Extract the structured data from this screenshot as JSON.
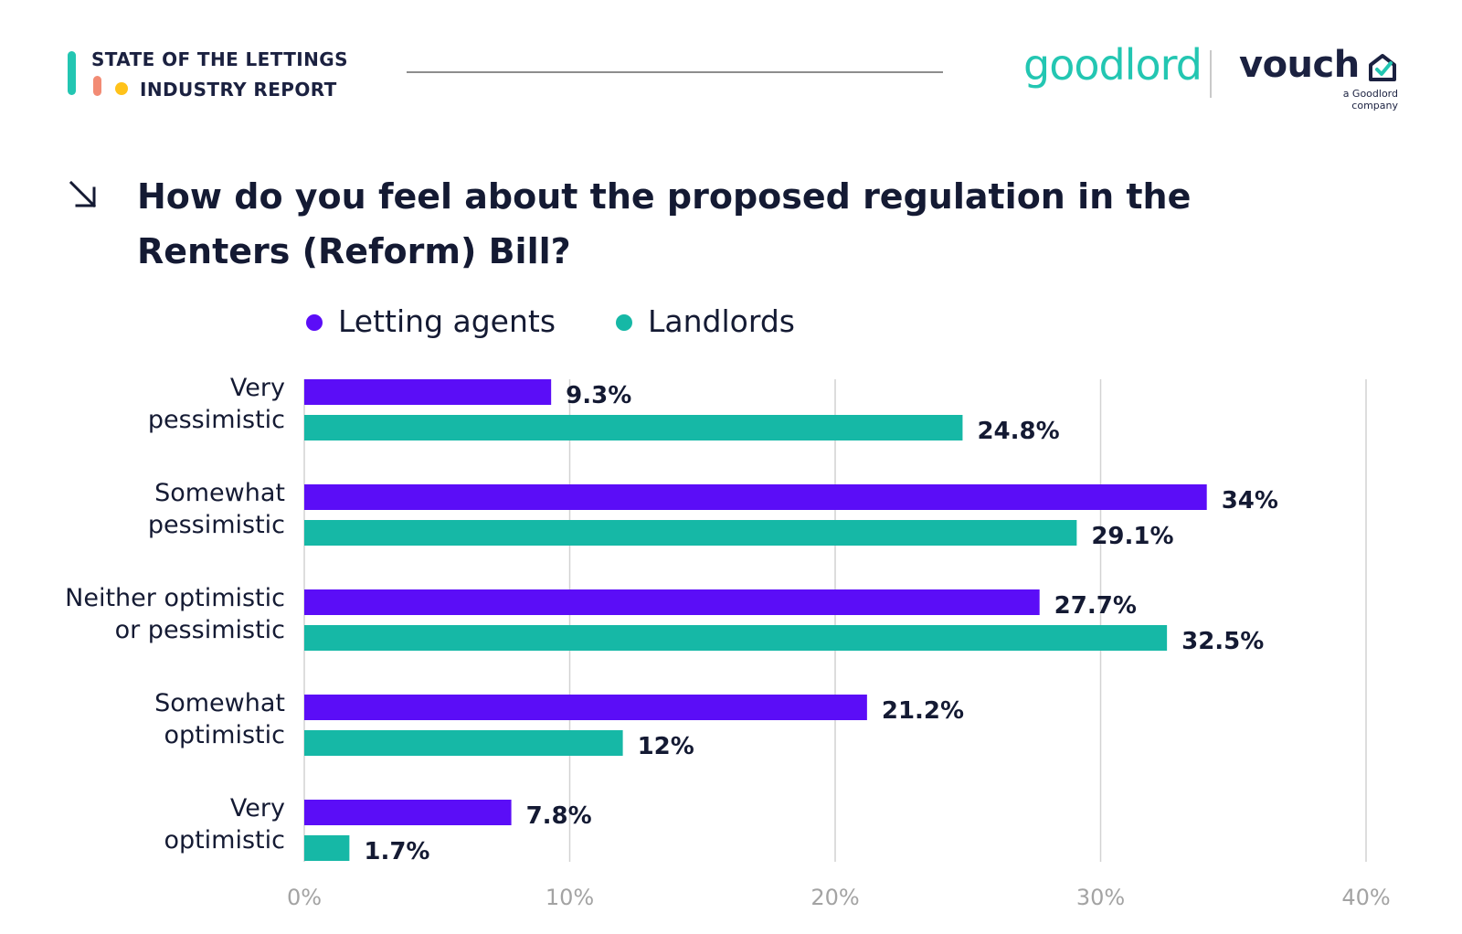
{
  "header": {
    "report_line1": "STATE OF THE LETTINGS",
    "report_line2": "INDUSTRY REPORT",
    "logo_goodlord": "goodlord",
    "logo_vouch": "vouch",
    "vouch_tagline_line1": "a Goodlord",
    "vouch_tagline_line2": "company",
    "brand_colors": {
      "teal": "#23c6b2",
      "coral": "#f28b74",
      "yellow": "#ffc21a",
      "navy": "#1b2140"
    }
  },
  "title_icon": "arrow-down-right-icon",
  "title_line1": "How do you feel about the proposed regulation in the",
  "title_line2": "Renters (Reform) Bill?",
  "chart_data": {
    "type": "bar",
    "orientation": "horizontal",
    "categories": [
      [
        "Very",
        "pessimistic"
      ],
      [
        "Somewhat",
        "pessimistic"
      ],
      [
        "Neither optimistic",
        "or pessimistic"
      ],
      [
        "Somewhat",
        "optimistic"
      ],
      [
        "Very",
        "optimistic"
      ]
    ],
    "series": [
      {
        "name": "Letting agents",
        "color": "#5b0df7",
        "values": [
          9.3,
          34,
          27.7,
          21.2,
          7.8
        ],
        "labels": [
          "9.3%",
          "34%",
          "27.7%",
          "21.2%",
          "7.8%"
        ]
      },
      {
        "name": "Landlords",
        "color": "#16b8a6",
        "values": [
          24.8,
          29.1,
          32.5,
          12,
          1.7
        ],
        "labels": [
          "24.8%",
          "29.1%",
          "32.5%",
          "12%",
          "1.7%"
        ]
      }
    ],
    "xlim": [
      0,
      40
    ],
    "xticks": [
      0,
      10,
      20,
      30,
      40
    ],
    "xtick_labels": [
      "0%",
      "10%",
      "20%",
      "30%",
      "40%"
    ],
    "grid": "vertical",
    "legend": "top-left"
  }
}
